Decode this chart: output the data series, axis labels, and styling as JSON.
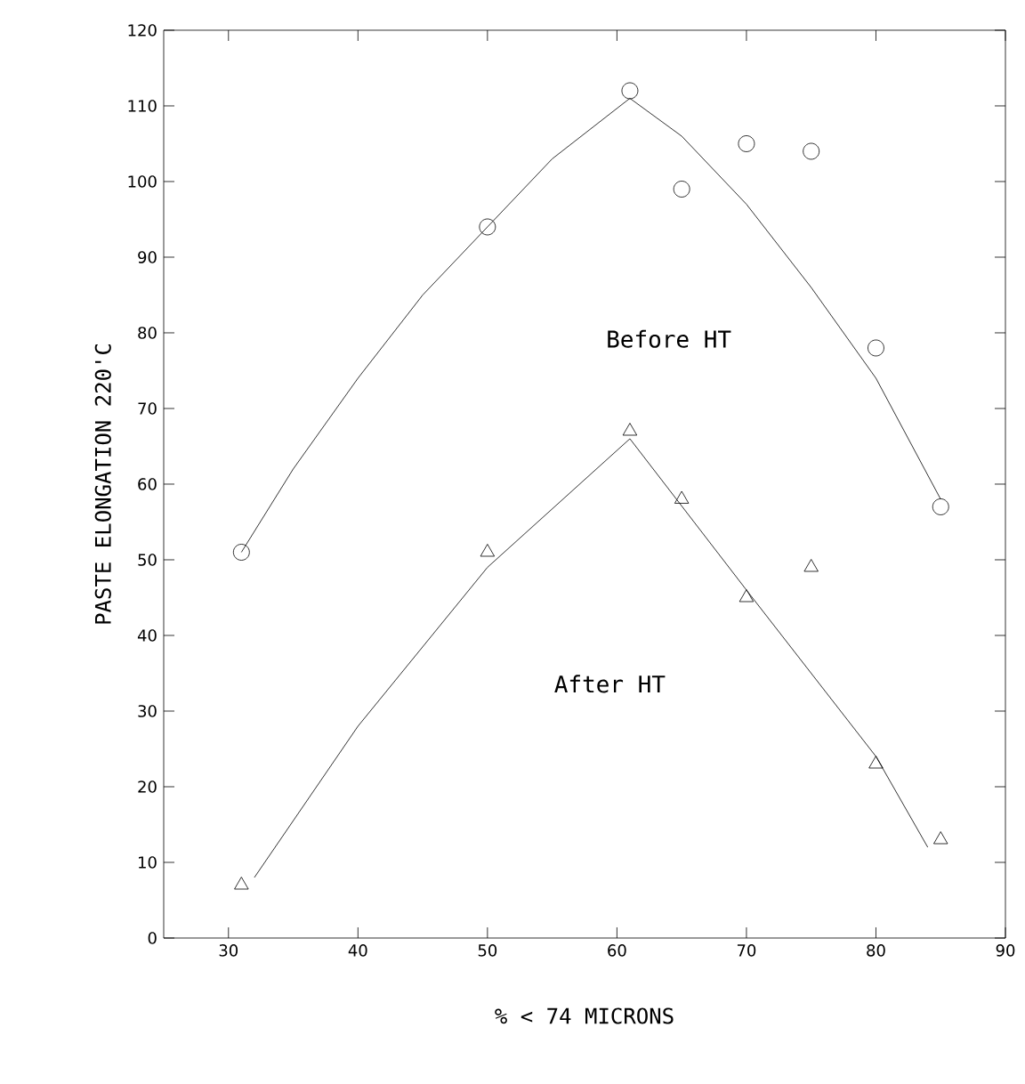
{
  "chart_data": {
    "type": "scatter",
    "xlabel": "% < 74 MICRONS",
    "ylabel": "PASTE ELONGATION 220'C",
    "xlim": [
      25,
      90
    ],
    "ylim": [
      0,
      120
    ],
    "xticks": [
      30,
      40,
      50,
      60,
      70,
      80,
      90
    ],
    "yticks": [
      0,
      10,
      20,
      30,
      40,
      50,
      60,
      70,
      80,
      90,
      100,
      110,
      120
    ],
    "grid": false,
    "series": [
      {
        "color": "#000000",
        "marker": "circle",
        "x": [
          31,
          50,
          61,
          65,
          70,
          75,
          80,
          85
        ],
        "values": [
          51,
          94,
          112,
          99,
          105,
          104,
          78,
          57
        ]
      },
      {
        "color": "#000000",
        "marker": "triangle",
        "x": [
          31,
          50,
          61,
          65,
          70,
          75,
          80,
          85
        ],
        "values": [
          7,
          51,
          67,
          58,
          45,
          49,
          23,
          13
        ]
      },
      {
        "type": "line",
        "color": "#000000",
        "marker": "none",
        "line_style": "solid",
        "x": [
          31,
          35,
          40,
          45,
          50,
          55,
          61,
          65,
          70,
          75,
          80,
          85
        ],
        "values": [
          51,
          62,
          74,
          85,
          94,
          103,
          111,
          106,
          97,
          86,
          74,
          58
        ]
      },
      {
        "type": "line",
        "color": "#000000",
        "marker": "none",
        "line_style": "solid",
        "x": [
          32,
          40,
          50,
          61,
          70,
          80,
          84
        ],
        "values": [
          8,
          28,
          49,
          66,
          46,
          24,
          12
        ]
      }
    ],
    "annotations": [
      "Before HT",
      "After HT"
    ]
  }
}
